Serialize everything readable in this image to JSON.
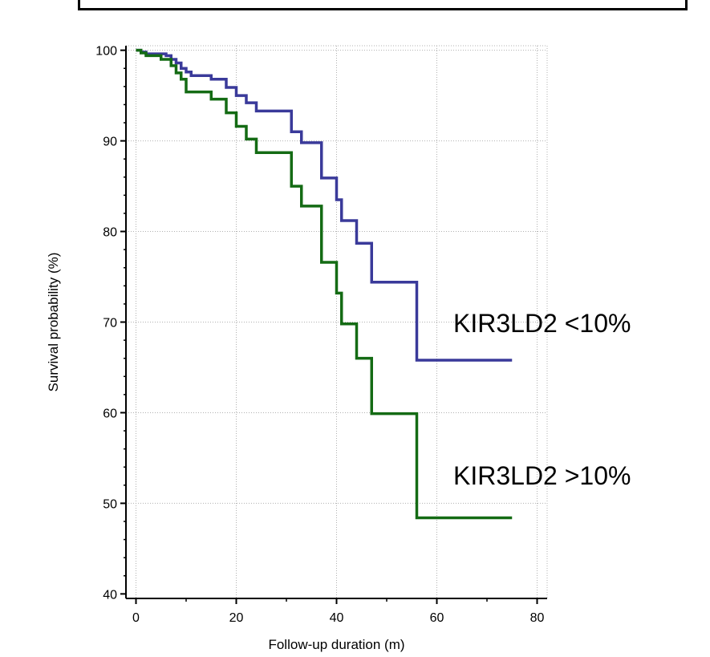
{
  "chart_data": {
    "type": "line",
    "title": "",
    "xlabel": "Follow-up duration (m)",
    "ylabel": "Survival probability (%)",
    "xlim": [
      -2,
      82
    ],
    "ylim": [
      39.5,
      100.5
    ],
    "x_ticks": [
      "0",
      "20",
      "40",
      "60",
      "80"
    ],
    "y_ticks": [
      "40",
      "50",
      "60",
      "70",
      "80",
      "90",
      "100"
    ],
    "grid": true,
    "colors": {
      "blue": "#3a3a9a",
      "green": "#146b14",
      "axis": "#000000",
      "grid": "#b0b0b0"
    },
    "series": [
      {
        "name": "KIR3LD2 <10%",
        "color": "#3a3a9a",
        "points": [
          [
            0,
            100
          ],
          [
            1,
            99.8
          ],
          [
            2,
            99.6
          ],
          [
            6,
            99.4
          ],
          [
            7,
            99.0
          ],
          [
            8,
            98.6
          ],
          [
            9,
            98.0
          ],
          [
            10,
            97.6
          ],
          [
            11,
            97.2
          ],
          [
            15,
            96.8
          ],
          [
            18,
            95.9
          ],
          [
            20,
            95.0
          ],
          [
            22,
            94.2
          ],
          [
            24,
            93.3
          ],
          [
            31,
            91.0
          ],
          [
            33,
            89.8
          ],
          [
            37,
            85.9
          ],
          [
            40,
            83.5
          ],
          [
            41,
            81.2
          ],
          [
            44,
            78.7
          ],
          [
            47,
            74.4
          ],
          [
            56,
            65.8
          ],
          [
            75,
            65.8
          ]
        ]
      },
      {
        "name": "KIR3LD2 >10%",
        "color": "#146b14",
        "points": [
          [
            0,
            100
          ],
          [
            1,
            99.7
          ],
          [
            2,
            99.4
          ],
          [
            5,
            99.0
          ],
          [
            7,
            98.3
          ],
          [
            8,
            97.5
          ],
          [
            9,
            96.8
          ],
          [
            10,
            95.4
          ],
          [
            15,
            94.6
          ],
          [
            18,
            93.1
          ],
          [
            20,
            91.6
          ],
          [
            22,
            90.2
          ],
          [
            24,
            88.7
          ],
          [
            31,
            85.0
          ],
          [
            33,
            82.8
          ],
          [
            37,
            76.6
          ],
          [
            40,
            73.2
          ],
          [
            41,
            69.8
          ],
          [
            44,
            66.0
          ],
          [
            47,
            59.9
          ],
          [
            56,
            48.4
          ],
          [
            75,
            48.4
          ]
        ]
      }
    ]
  }
}
